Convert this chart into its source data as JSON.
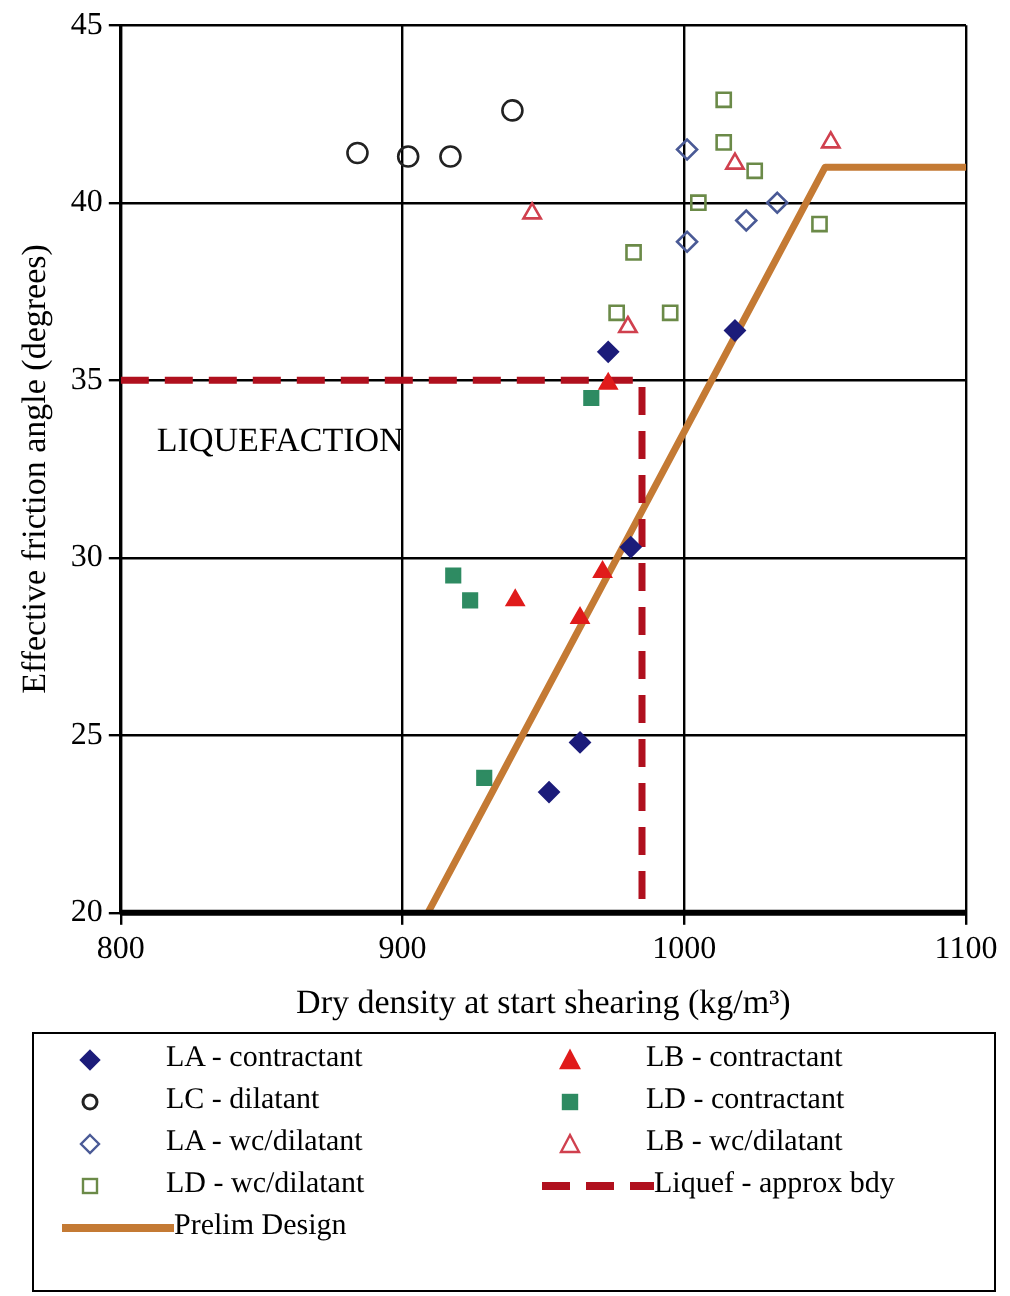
{
  "chart_data": {
    "type": "scatter",
    "xlabel": "Dry density at start shearing (kg/m³)",
    "ylabel": "Effective friction angle (degrees)",
    "xlim": [
      800,
      1100
    ],
    "xticks": [
      800,
      900,
      1000,
      1100
    ],
    "ylim": [
      20,
      45
    ],
    "yticks": [
      20,
      25,
      30,
      35,
      40,
      45
    ],
    "grid": true,
    "legend": "bottom",
    "annotations": [
      "LIQUEFACTION"
    ],
    "series": [
      {
        "name": "LA - contractant",
        "color": "#1c1c7a",
        "marker": "diamond",
        "x": [
          973,
          1018,
          981,
          963,
          952
        ],
        "values": [
          35.8,
          36.4,
          30.3,
          24.8,
          23.4
        ]
      },
      {
        "name": "LB - contractant",
        "color": "#e01b1b",
        "marker": "triangle",
        "x": [
          973,
          971,
          940,
          963
        ],
        "values": [
          34.9,
          29.6,
          28.8,
          28.3
        ]
      },
      {
        "name": "LC - dilatant",
        "color": "#222222",
        "marker": "circle",
        "x": [
          884,
          902,
          917,
          939
        ],
        "values": [
          41.4,
          41.3,
          41.3,
          42.6
        ]
      },
      {
        "name": "LD - contractant",
        "color": "#2e8b62",
        "marker": "square",
        "x": [
          967,
          918,
          924,
          929
        ],
        "values": [
          34.5,
          29.5,
          28.8,
          23.8
        ]
      },
      {
        "name": "LA - wc/dilatant",
        "color": "#4a5a96",
        "marker": "diamond",
        "x": [
          1001,
          1033,
          1022,
          1001
        ],
        "values": [
          41.5,
          40.0,
          39.5,
          38.9
        ]
      },
      {
        "name": "LB - wc/dilatant",
        "color": "#d0404e",
        "marker": "triangle",
        "x": [
          946,
          1052,
          1018,
          980
        ],
        "values": [
          39.7,
          41.7,
          41.1,
          36.5
        ]
      },
      {
        "name": "LD - wc/dilatant",
        "color": "#6b8a48",
        "marker": "square",
        "x": [
          1014,
          1014,
          1025,
          1005,
          1048,
          982,
          976,
          995
        ],
        "values": [
          42.9,
          41.7,
          40.9,
          40.0,
          39.4,
          38.6,
          36.9,
          36.9
        ]
      },
      {
        "name": "Liquef - approx bdy",
        "type": "line",
        "color": "#b0101e",
        "line_style": "dashed",
        "marker": "none",
        "x": [
          800,
          985,
          985
        ],
        "values": [
          35,
          35,
          20
        ]
      },
      {
        "name": "Prelim Design",
        "type": "line",
        "color": "#c47a34",
        "line_style": "solid",
        "marker": "none",
        "x": [
          909,
          1050,
          1100
        ],
        "values": [
          20,
          41,
          41
        ]
      }
    ]
  }
}
